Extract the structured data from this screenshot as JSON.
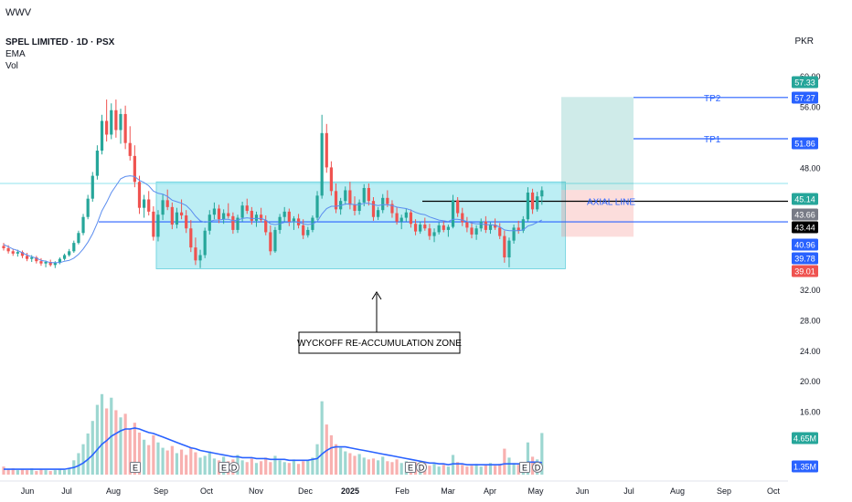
{
  "header": {
    "watermark": "WWV",
    "symbol_line": "SPEL LIMITED · 1D · PSX",
    "indicators": [
      "EMA",
      "Vol"
    ],
    "currency": "PKR"
  },
  "chart_data": {
    "type": "candlestick",
    "y_ticks": [
      "60.00",
      "56.00",
      "48.00",
      "32.00",
      "28.00",
      "24.00",
      "20.00",
      "16.00"
    ],
    "y_range": [
      12,
      62
    ],
    "x_ticks": [
      {
        "label": "Jun",
        "bold": false
      },
      {
        "label": "Jul",
        "bold": false
      },
      {
        "label": "Aug",
        "bold": false
      },
      {
        "label": "Sep",
        "bold": false
      },
      {
        "label": "Oct",
        "bold": false
      },
      {
        "label": "Nov",
        "bold": false
      },
      {
        "label": "Dec",
        "bold": false
      },
      {
        "label": "2025",
        "bold": true
      },
      {
        "label": "Feb",
        "bold": false
      },
      {
        "label": "Mar",
        "bold": false
      },
      {
        "label": "Apr",
        "bold": false
      },
      {
        "label": "May",
        "bold": false
      },
      {
        "label": "Jun",
        "bold": false
      },
      {
        "label": "Jul",
        "bold": false
      },
      {
        "label": "Aug",
        "bold": false
      },
      {
        "label": "Sep",
        "bold": false
      },
      {
        "label": "Oct",
        "bold": false
      }
    ],
    "price_labels": [
      {
        "text": "57.33",
        "bg": "#26a69a"
      },
      {
        "text": "57.27",
        "bg": "#2962ff"
      },
      {
        "text": "51.86",
        "bg": "#2962ff"
      },
      {
        "text": "45.14",
        "bg": "#26a69a"
      },
      {
        "text": "43.66",
        "bg": "#787b86"
      },
      {
        "text": "43.44",
        "bg": "#000000"
      },
      {
        "text": "40.96",
        "bg": "#2962ff"
      },
      {
        "text": "39.78",
        "bg": "#2962ff"
      },
      {
        "text": "39.01",
        "bg": "#ef5350"
      },
      {
        "text": "4.65M",
        "bg": "#26a69a"
      },
      {
        "text": "1.35M",
        "bg": "#2962ff"
      }
    ],
    "annotations": {
      "tp2": "TP2",
      "tp1": "TP1",
      "axial": "AXIAL LINE",
      "zone": "WYCKOFF RE-ACCUMULATION ZONE"
    },
    "event_markers": [
      "E",
      "E",
      "D",
      "E",
      "D",
      "E",
      "D"
    ],
    "candles": [
      [
        37.8,
        38.2,
        37.2,
        37.5
      ],
      [
        37.5,
        37.9,
        36.8,
        37.1
      ],
      [
        37.1,
        37.4,
        36.5,
        36.8
      ],
      [
        36.8,
        37.3,
        36.4,
        37.0
      ],
      [
        37.0,
        37.2,
        36.2,
        36.5
      ],
      [
        36.5,
        36.9,
        35.8,
        36.1
      ],
      [
        36.1,
        36.6,
        35.7,
        36.3
      ],
      [
        36.3,
        36.5,
        35.5,
        35.8
      ],
      [
        35.8,
        36.2,
        35.2,
        35.5
      ],
      [
        35.5,
        35.9,
        35.0,
        35.7
      ],
      [
        35.7,
        36.0,
        35.1,
        35.3
      ],
      [
        35.3,
        35.8,
        34.9,
        35.6
      ],
      [
        35.6,
        36.3,
        35.4,
        36.1
      ],
      [
        36.1,
        36.8,
        35.9,
        36.6
      ],
      [
        36.6,
        37.4,
        36.4,
        37.1
      ],
      [
        37.1,
        38.5,
        36.9,
        38.2
      ],
      [
        38.2,
        39.8,
        38.0,
        39.5
      ],
      [
        39.5,
        42.0,
        39.2,
        41.6
      ],
      [
        41.6,
        44.5,
        41.3,
        44.0
      ],
      [
        44.0,
        47.5,
        43.6,
        47.0
      ],
      [
        47.0,
        51.0,
        46.5,
        50.3
      ],
      [
        50.3,
        55.0,
        49.8,
        54.2
      ],
      [
        54.2,
        57.0,
        51.5,
        52.4
      ],
      [
        52.4,
        56.5,
        51.8,
        55.6
      ],
      [
        55.6,
        57.0,
        52.0,
        53.0
      ],
      [
        53.0,
        55.8,
        51.2,
        55.1
      ],
      [
        55.1,
        56.2,
        50.5,
        51.3
      ],
      [
        51.3,
        53.5,
        49.0,
        49.6
      ],
      [
        49.6,
        51.0,
        45.5,
        46.2
      ],
      [
        46.2,
        47.0,
        42.0,
        42.8
      ],
      [
        42.8,
        44.5,
        41.5,
        43.9
      ],
      [
        43.9,
        45.0,
        41.8,
        42.3
      ],
      [
        42.3,
        43.0,
        38.5,
        39.0
      ],
      [
        39.0,
        42.5,
        38.4,
        41.9
      ],
      [
        41.9,
        44.6,
        41.2,
        43.8
      ],
      [
        43.8,
        45.2,
        42.5,
        42.9
      ],
      [
        42.9,
        43.5,
        40.0,
        40.6
      ],
      [
        40.6,
        42.8,
        40.1,
        42.2
      ],
      [
        42.2,
        43.9,
        41.3,
        41.8
      ],
      [
        41.8,
        42.5,
        39.5,
        40.1
      ],
      [
        40.1,
        41.2,
        37.0,
        37.6
      ],
      [
        37.6,
        38.9,
        35.3,
        35.9
      ],
      [
        35.9,
        37.3,
        34.9,
        36.6
      ],
      [
        36.6,
        40.2,
        36.2,
        39.8
      ],
      [
        39.8,
        42.5,
        39.3,
        41.9
      ],
      [
        41.9,
        43.5,
        41.3,
        42.7
      ],
      [
        42.7,
        43.2,
        40.8,
        41.3
      ],
      [
        41.3,
        42.6,
        40.7,
        42.1
      ],
      [
        42.1,
        43.4,
        41.4,
        41.7
      ],
      [
        41.7,
        42.2,
        39.4,
        39.9
      ],
      [
        39.9,
        41.9,
        39.5,
        41.5
      ],
      [
        41.5,
        43.6,
        41.0,
        43.1
      ],
      [
        43.1,
        44.0,
        42.0,
        42.4
      ],
      [
        42.4,
        42.9,
        40.6,
        41.1
      ],
      [
        41.1,
        42.3,
        40.3,
        41.9
      ],
      [
        41.9,
        42.8,
        40.9,
        41.2
      ],
      [
        41.2,
        41.8,
        39.2,
        39.6
      ],
      [
        39.6,
        40.5,
        36.6,
        37.1
      ],
      [
        37.1,
        40.3,
        36.9,
        39.9
      ],
      [
        39.9,
        42.0,
        39.4,
        41.6
      ],
      [
        41.6,
        42.9,
        41.0,
        42.3
      ],
      [
        42.3,
        42.7,
        40.4,
        40.9
      ],
      [
        40.9,
        41.7,
        39.9,
        41.4
      ],
      [
        41.4,
        42.0,
        40.1,
        40.5
      ],
      [
        40.5,
        41.3,
        38.7,
        39.2
      ],
      [
        39.2,
        40.3,
        38.9,
        39.9
      ],
      [
        39.9,
        41.8,
        39.6,
        41.5
      ],
      [
        41.5,
        45.0,
        41.2,
        44.4
      ],
      [
        44.4,
        55.0,
        44.0,
        52.6
      ],
      [
        52.6,
        53.8,
        47.4,
        48.1
      ],
      [
        48.1,
        48.9,
        44.4,
        45.0
      ],
      [
        45.0,
        46.0,
        42.1,
        42.6
      ],
      [
        42.6,
        44.1,
        41.9,
        43.7
      ],
      [
        43.7,
        45.6,
        43.2,
        45.1
      ],
      [
        45.1,
        46.2,
        42.6,
        43.2
      ],
      [
        43.2,
        44.3,
        41.8,
        42.4
      ],
      [
        42.4,
        43.9,
        41.9,
        43.5
      ],
      [
        43.5,
        45.9,
        43.0,
        45.4
      ],
      [
        45.4,
        46.0,
        43.1,
        43.7
      ],
      [
        43.7,
        44.2,
        41.1,
        41.6
      ],
      [
        41.6,
        42.9,
        41.2,
        42.5
      ],
      [
        42.5,
        44.6,
        42.1,
        44.1
      ],
      [
        44.1,
        45.1,
        42.9,
        43.3
      ],
      [
        43.3,
        43.8,
        41.5,
        42.1
      ],
      [
        42.1,
        42.9,
        40.6,
        41.0
      ],
      [
        41.0,
        41.9,
        40.0,
        41.5
      ],
      [
        41.5,
        42.7,
        41.0,
        42.2
      ],
      [
        42.2,
        42.6,
        40.2,
        40.7
      ],
      [
        40.7,
        41.3,
        39.2,
        39.7
      ],
      [
        39.7,
        41.0,
        39.4,
        40.6
      ],
      [
        40.6,
        41.5,
        39.8,
        40.1
      ],
      [
        40.1,
        40.7,
        38.6,
        39.1
      ],
      [
        39.1,
        40.1,
        38.3,
        39.6
      ],
      [
        39.6,
        40.9,
        39.3,
        40.5
      ],
      [
        40.5,
        41.1,
        39.6,
        39.9
      ],
      [
        39.9,
        40.6,
        39.0,
        40.3
      ],
      [
        40.3,
        44.5,
        40.1,
        43.8
      ],
      [
        43.8,
        44.2,
        41.6,
        42.1
      ],
      [
        42.1,
        42.8,
        40.4,
        40.9
      ],
      [
        40.9,
        41.6,
        39.6,
        40.2
      ],
      [
        40.2,
        40.9,
        38.8,
        39.3
      ],
      [
        39.3,
        40.5,
        38.6,
        40.1
      ],
      [
        40.1,
        41.4,
        39.7,
        41.0
      ],
      [
        41.0,
        41.7,
        39.5,
        39.9
      ],
      [
        39.9,
        40.9,
        39.4,
        40.6
      ],
      [
        40.6,
        41.4,
        39.9,
        40.2
      ],
      [
        40.2,
        40.8,
        38.7,
        39.1
      ],
      [
        39.1,
        39.8,
        35.6,
        36.3
      ],
      [
        36.3,
        38.9,
        35.0,
        38.5
      ],
      [
        38.5,
        40.6,
        38.1,
        40.2
      ],
      [
        40.2,
        41.1,
        39.4,
        39.8
      ],
      [
        39.8,
        41.7,
        39.5,
        41.3
      ],
      [
        41.3,
        45.5,
        41.0,
        44.8
      ],
      [
        44.8,
        45.3,
        42.0,
        42.6
      ],
      [
        42.6,
        44.9,
        42.3,
        44.3
      ],
      [
        44.3,
        45.6,
        43.2,
        45.1
      ]
    ],
    "ema": [
      38.0,
      37.7,
      37.4,
      37.2,
      36.9,
      36.6,
      36.4,
      36.2,
      35.9,
      35.8,
      35.6,
      35.6,
      35.6,
      35.8,
      35.9,
      36.2,
      36.7,
      37.4,
      38.3,
      39.4,
      40.8,
      42.4,
      43.5,
      44.8,
      45.7,
      46.6,
      46.9,
      47.0,
      46.9,
      46.4,
      46.1,
      45.7,
      45.0,
      44.7,
      44.6,
      44.3,
      43.8,
      43.6,
      43.4,
      43.1,
      42.5,
      41.7,
      41.1,
      40.9,
      41.0,
      41.2,
      41.2,
      41.3,
      41.3,
      41.1,
      41.2,
      41.4,
      41.5,
      41.4,
      41.4,
      41.4,
      41.2,
      40.7,
      40.6,
      40.7,
      40.9,
      40.9,
      41.0,
      40.9,
      40.7,
      40.6,
      40.7,
      41.0,
      42.0,
      42.7,
      43.0,
      43.0,
      43.1,
      43.3,
      43.3,
      43.2,
      43.2,
      43.4,
      43.4,
      43.2,
      43.1,
      43.2,
      43.2,
      43.1,
      42.9,
      42.8,
      42.7,
      42.5,
      42.2,
      42.0,
      41.9,
      41.6,
      41.4,
      41.2,
      41.1,
      41.0,
      41.3,
      41.3,
      41.2,
      41.0,
      40.8,
      40.7,
      40.7,
      40.6,
      40.6,
      40.5,
      40.3,
      39.9,
      39.8,
      39.8,
      39.8,
      39.9,
      40.4,
      40.6,
      40.9,
      41.2
    ],
    "volume": [
      0.9,
      0.6,
      0.7,
      0.5,
      0.6,
      0.5,
      0.7,
      0.4,
      0.6,
      0.5,
      0.4,
      0.5,
      0.6,
      0.5,
      0.7,
      1.6,
      2.4,
      3.4,
      4.6,
      6.0,
      7.8,
      9.0,
      7.4,
      8.6,
      7.2,
      6.4,
      6.8,
      5.1,
      5.8,
      4.7,
      3.9,
      3.3,
      4.4,
      3.6,
      3.0,
      2.7,
      3.2,
      2.4,
      2.8,
      2.2,
      3.0,
      2.5,
      1.9,
      2.1,
      2.6,
      1.8,
      1.6,
      2.0,
      1.5,
      1.7,
      2.2,
      1.6,
      1.4,
      1.8,
      1.3,
      1.5,
      1.9,
      1.4,
      2.1,
      1.6,
      1.4,
      1.3,
      1.7,
      1.2,
      1.5,
      1.6,
      1.9,
      3.4,
      8.2,
      5.6,
      4.4,
      3.4,
      3.0,
      2.6,
      2.4,
      2.1,
      2.3,
      1.9,
      1.7,
      1.8,
      1.6,
      2.0,
      1.5,
      1.4,
      1.7,
      1.3,
      1.5,
      1.2,
      1.4,
      1.1,
      1.3,
      1.0,
      1.2,
      0.9,
      1.1,
      0.9,
      2.2,
      1.4,
      1.1,
      0.9,
      1.0,
      1.2,
      0.9,
      1.1,
      1.3,
      1.0,
      1.2,
      2.9,
      1.9,
      1.3,
      1.1,
      1.2,
      3.6,
      2.0,
      1.7,
      4.65
    ],
    "volume_ma": [
      0.6,
      0.6,
      0.6,
      0.6,
      0.6,
      0.6,
      0.6,
      0.6,
      0.6,
      0.6,
      0.6,
      0.6,
      0.6,
      0.6,
      0.7,
      0.8,
      1.0,
      1.3,
      1.7,
      2.2,
      2.8,
      3.4,
      3.8,
      4.3,
      4.6,
      4.9,
      5.1,
      5.1,
      5.2,
      5.1,
      4.9,
      4.7,
      4.6,
      4.4,
      4.2,
      4.0,
      3.8,
      3.6,
      3.4,
      3.2,
      3.0,
      2.9,
      2.7,
      2.6,
      2.5,
      2.4,
      2.3,
      2.2,
      2.1,
      2.0,
      2.0,
      1.9,
      1.9,
      1.9,
      1.8,
      1.8,
      1.8,
      1.7,
      1.7,
      1.7,
      1.7,
      1.6,
      1.6,
      1.6,
      1.6,
      1.6,
      1.7,
      1.8,
      2.3,
      2.7,
      3.0,
      3.1,
      3.1,
      3.1,
      3.0,
      2.9,
      2.8,
      2.7,
      2.6,
      2.5,
      2.4,
      2.3,
      2.2,
      2.1,
      2.0,
      1.9,
      1.8,
      1.7,
      1.6,
      1.5,
      1.4,
      1.3,
      1.3,
      1.2,
      1.2,
      1.1,
      1.2,
      1.2,
      1.2,
      1.1,
      1.1,
      1.1,
      1.1,
      1.1,
      1.1,
      1.1,
      1.1,
      1.2,
      1.2,
      1.2,
      1.2,
      1.2,
      1.4,
      1.4,
      1.4,
      1.35
    ]
  }
}
